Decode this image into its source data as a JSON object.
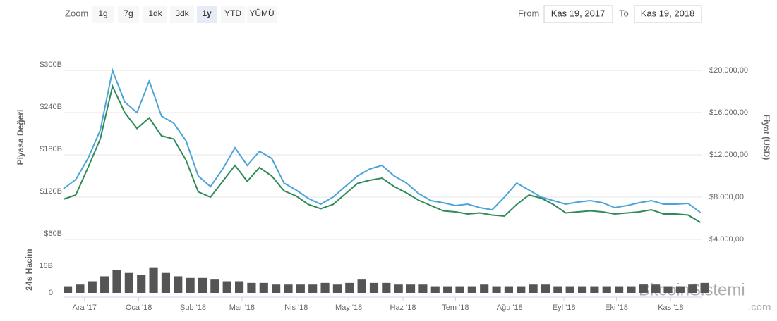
{
  "toolbar": {
    "zoom": "Zoom",
    "buttons": [
      "1g",
      "7g",
      "1dk",
      "3dk",
      "1y",
      "YTD",
      "YÜMÜ"
    ],
    "selected": "1y",
    "from_label": "From",
    "from": "Kas 19, 2017",
    "to_label": "To",
    "to": "Kas 19, 2018"
  },
  "watermark": {
    "text": "BitcoinSistemi",
    "suffix": ".com"
  },
  "chart_data": [
    {
      "type": "line",
      "ylabel": "Piyasa Değeri",
      "y2label": "Fiyat (USD)",
      "x": [
        0,
        7,
        14,
        21,
        28,
        35,
        42,
        49,
        56,
        63,
        70,
        77,
        84,
        91,
        98,
        105,
        112,
        119,
        126,
        133,
        140,
        147,
        154,
        161,
        168,
        175,
        182,
        189,
        196,
        203,
        210,
        217,
        224,
        231,
        238,
        245,
        252,
        259,
        266,
        273,
        280,
        287,
        294,
        301,
        308,
        315,
        322,
        329,
        336,
        343,
        350,
        357,
        364
      ],
      "xlim": [
        0,
        365
      ],
      "ylim": [
        60,
        330
      ],
      "y2lim": [
        4000,
        22000
      ],
      "grid": true,
      "yticks": [
        {
          "value": 60,
          "label": "$60B"
        },
        {
          "value": 120,
          "label": "$120B"
        },
        {
          "value": 180,
          "label": "$180B"
        },
        {
          "value": 240,
          "label": "$240B"
        },
        {
          "value": 300,
          "label": "$300B"
        }
      ],
      "y2ticks": [
        {
          "value": 4000,
          "label": "$4.000,00"
        },
        {
          "value": 8000,
          "label": "$8.000,00"
        },
        {
          "value": 12000,
          "label": "$12.000,00"
        },
        {
          "value": 16000,
          "label": "$16.000,00"
        },
        {
          "value": 20000,
          "label": "$20.000,00"
        }
      ],
      "series": [
        {
          "color": "#4ba3d8",
          "values": [
            132,
            145,
            175,
            215,
            300,
            255,
            240,
            285,
            235,
            225,
            200,
            150,
            135,
            160,
            190,
            165,
            185,
            175,
            140,
            130,
            118,
            110,
            120,
            135,
            150,
            160,
            165,
            150,
            140,
            125,
            115,
            112,
            108,
            110,
            105,
            102,
            120,
            140,
            130,
            120,
            115,
            110,
            113,
            115,
            112,
            105,
            108,
            112,
            115,
            110,
            110,
            111,
            98
          ]
        },
        {
          "color": "#2e8b57",
          "axis": "y2",
          "values": [
            7800,
            8200,
            10800,
            13500,
            18500,
            16000,
            14500,
            15500,
            13800,
            13500,
            11500,
            8500,
            8000,
            9500,
            11000,
            9500,
            10800,
            10000,
            8600,
            8100,
            7300,
            6900,
            7300,
            8300,
            9300,
            9600,
            9800,
            9000,
            8400,
            7700,
            7200,
            6700,
            6600,
            6400,
            6500,
            6300,
            6200,
            7300,
            8200,
            7900,
            7300,
            6500,
            6600,
            6700,
            6600,
            6400,
            6500,
            6600,
            6800,
            6400,
            6400,
            6300,
            5600
          ]
        }
      ]
    },
    {
      "type": "bar",
      "ylabel": "24s Hacim",
      "color": "#555555",
      "x": [
        0,
        7,
        14,
        21,
        28,
        35,
        42,
        49,
        56,
        63,
        70,
        77,
        84,
        91,
        98,
        105,
        112,
        119,
        126,
        133,
        140,
        147,
        154,
        161,
        168,
        175,
        182,
        189,
        196,
        203,
        210,
        217,
        224,
        231,
        238,
        245,
        252,
        259,
        266,
        273,
        280,
        287,
        294,
        301,
        308,
        315,
        322,
        329,
        336,
        343,
        350,
        357,
        364
      ],
      "xlim": [
        0,
        365
      ],
      "ylim": [
        0,
        28
      ],
      "yticks": [
        0,
        {
          "value": 16,
          "label": "16B"
        }
      ],
      "xticks": [
        {
          "value": 12,
          "label": "Ara '17"
        },
        {
          "value": 43,
          "label": "Oca '18"
        },
        {
          "value": 74,
          "label": "Şub '18"
        },
        {
          "value": 102,
          "label": "Mar '18"
        },
        {
          "value": 133,
          "label": "Nis '18"
        },
        {
          "value": 163,
          "label": "May '18"
        },
        {
          "value": 194,
          "label": "Haz '18"
        },
        {
          "value": 224,
          "label": "Tem '18"
        },
        {
          "value": 255,
          "label": "Ağu '18"
        },
        {
          "value": 286,
          "label": "Eyl '18"
        },
        {
          "value": 316,
          "label": "Eki '18"
        },
        {
          "value": 347,
          "label": "Kas '18"
        }
      ],
      "values": [
        4,
        5,
        7,
        10,
        14,
        12,
        11,
        15,
        12,
        10,
        9,
        9,
        8,
        7,
        7,
        6,
        6,
        5,
        5,
        5,
        5,
        6,
        5,
        6,
        8,
        6,
        6,
        5,
        5,
        5,
        4,
        4,
        4,
        4,
        5,
        4,
        4,
        4,
        5,
        5,
        4,
        4,
        4,
        4,
        4,
        4,
        4,
        5,
        5,
        4,
        4,
        5,
        6
      ]
    }
  ]
}
